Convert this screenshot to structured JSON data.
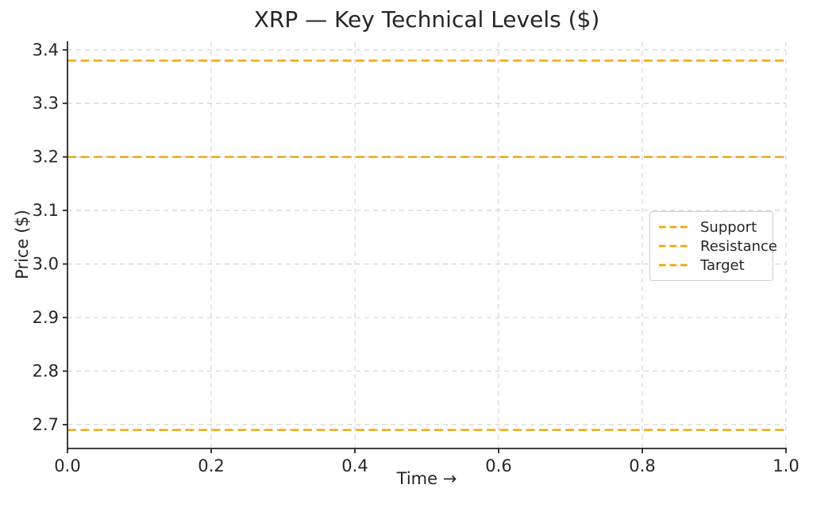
{
  "chart_data": {
    "type": "line",
    "title": "XRP — Key Technical Levels ($)",
    "xlabel": "Time →",
    "ylabel": "Price ($)",
    "xlim": [
      0.0,
      1.0
    ],
    "ylim": [
      2.6555,
      3.4145
    ],
    "xticks": [
      0.0,
      0.2,
      0.4,
      0.6,
      0.8,
      1.0
    ],
    "yticks": [
      2.7,
      2.8,
      2.9,
      3.0,
      3.1,
      3.2,
      3.3,
      3.4
    ],
    "grid": true,
    "grid_style": "dashed",
    "legend_position": "center right",
    "line_style": "dashed",
    "levels_top_to_bottom": [
      3.38,
      3.2,
      2.69
    ],
    "lines": [
      {
        "label": "Support",
        "value": 2.69,
        "color": "#EFA30D"
      },
      {
        "label": "Resistance",
        "value": 3.2,
        "color": "#EFA30D"
      },
      {
        "label": "Target",
        "value": 3.38,
        "color": "#EFA30D"
      }
    ]
  },
  "colors": {
    "line": "#EFA30D",
    "text": "#262626",
    "grid": "#D4D4D4",
    "spine": "#262626",
    "background": "#FFFFFF",
    "legend_border": "#CCCCCC"
  }
}
